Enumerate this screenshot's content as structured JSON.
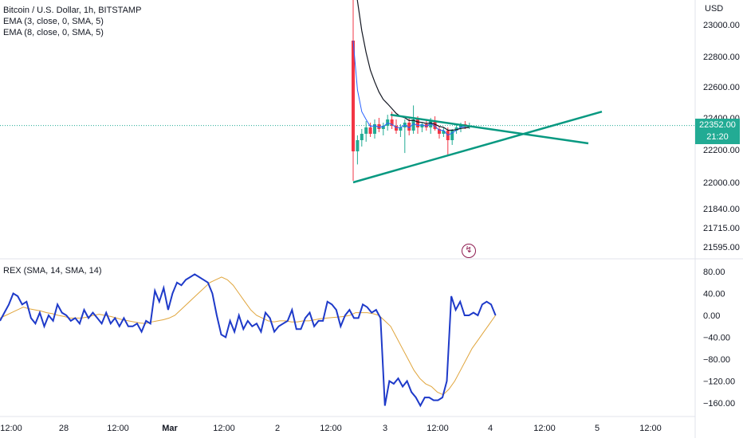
{
  "window": {
    "currency_label": "USD"
  },
  "legend": {
    "main_title": "Bitcoin / U.S. Dollar, 1h, BITSTAMP",
    "ema1": "EMA (3, close, 0, SMA, 5)",
    "ema2": "EMA (8, close, 0, SMA, 5)",
    "rex": "REX (SMA, 14, SMA, 14)"
  },
  "price_tag": {
    "price": "22352.00",
    "countdown": "21:20"
  },
  "colors": {
    "up": "#22ab94",
    "down": "#f23645",
    "ema_fast": "#2962ff",
    "ema_slow": "#131722",
    "trendline": "#089981",
    "rex_line": "#1e3ac9",
    "rex_signal": "#e0a53c",
    "price_line": "#22ab94"
  },
  "icons": {
    "flash": "lightning-icon"
  },
  "chart_data": [
    {
      "type": "candlestick",
      "title": "Bitcoin / U.S. Dollar, 1h, BITSTAMP",
      "ylabel": "USD",
      "y_ticks": [
        23000.0,
        22800.0,
        22600.0,
        22400.0,
        22200.0,
        22000.0,
        21840.0,
        21715.0,
        21595.0
      ],
      "y_tick_labels": [
        "23000.00",
        "22800.00",
        "22600.00",
        "22400.00",
        "22200.00",
        "22000.00",
        "21840.00",
        "21715.00",
        "21595.00"
      ],
      "last_price": 22352.0,
      "candles_visible": [
        {
          "o": 22900,
          "h": 23500,
          "l": 22010,
          "c": 22190
        },
        {
          "o": 22190,
          "h": 22290,
          "l": 22110,
          "c": 22260
        },
        {
          "o": 22260,
          "h": 22330,
          "l": 22220,
          "c": 22300
        },
        {
          "o": 22300,
          "h": 22380,
          "l": 22250,
          "c": 22340
        },
        {
          "o": 22340,
          "h": 22370,
          "l": 22280,
          "c": 22300
        },
        {
          "o": 22300,
          "h": 22390,
          "l": 22270,
          "c": 22360
        },
        {
          "o": 22360,
          "h": 22400,
          "l": 22310,
          "c": 22330
        },
        {
          "o": 22330,
          "h": 22370,
          "l": 22290,
          "c": 22350
        },
        {
          "o": 22350,
          "h": 22420,
          "l": 22320,
          "c": 22390
        },
        {
          "o": 22390,
          "h": 22440,
          "l": 22330,
          "c": 22350
        },
        {
          "o": 22350,
          "h": 22390,
          "l": 22300,
          "c": 22320
        },
        {
          "o": 22320,
          "h": 22360,
          "l": 22280,
          "c": 22340
        },
        {
          "o": 22340,
          "h": 22390,
          "l": 22180,
          "c": 22370
        },
        {
          "o": 22370,
          "h": 22400,
          "l": 22290,
          "c": 22320
        },
        {
          "o": 22320,
          "h": 22480,
          "l": 22300,
          "c": 22390
        },
        {
          "o": 22390,
          "h": 22410,
          "l": 22300,
          "c": 22340
        },
        {
          "o": 22340,
          "h": 22370,
          "l": 22310,
          "c": 22360
        },
        {
          "o": 22360,
          "h": 22390,
          "l": 22320,
          "c": 22340
        },
        {
          "o": 22340,
          "h": 22400,
          "l": 22300,
          "c": 22380
        },
        {
          "o": 22380,
          "h": 22410,
          "l": 22320,
          "c": 22330
        },
        {
          "o": 22330,
          "h": 22350,
          "l": 22270,
          "c": 22300
        },
        {
          "o": 22300,
          "h": 22340,
          "l": 22280,
          "c": 22320
        },
        {
          "o": 22320,
          "h": 22340,
          "l": 22170,
          "c": 22260
        },
        {
          "o": 22260,
          "h": 22330,
          "l": 22230,
          "c": 22320
        },
        {
          "o": 22320,
          "h": 22360,
          "l": 22300,
          "c": 22340
        },
        {
          "o": 22340,
          "h": 22370,
          "l": 22310,
          "c": 22360
        },
        {
          "o": 22360,
          "h": 22380,
          "l": 22330,
          "c": 22350
        },
        {
          "o": 22350,
          "h": 22370,
          "l": 22330,
          "c": 22352
        }
      ],
      "trendlines": [
        {
          "from": [
            0.0,
            22000
          ],
          "to": [
            1.0,
            22440
          ]
        },
        {
          "from": [
            0.15,
            22420
          ],
          "to": [
            1.0,
            22240
          ]
        }
      ]
    },
    {
      "type": "line",
      "title": "REX (SMA, 14, SMA, 14)",
      "y_ticks": [
        80.0,
        40.0,
        0.0,
        -40.0,
        -80.0,
        -120.0,
        -160.0
      ],
      "y_tick_labels": [
        "80.00",
        "40.00",
        "0.00",
        "−40.00",
        "−80.00",
        "−120.00",
        "−160.00"
      ],
      "ylim": [
        -175,
        100
      ],
      "series": [
        {
          "values": [
            -10,
            5,
            20,
            40,
            35,
            20,
            25,
            -5,
            -15,
            5,
            -20,
            0,
            -10,
            20,
            5,
            0,
            -10,
            -5,
            -15,
            10,
            -5,
            5,
            -5,
            -15,
            5,
            -15,
            -5,
            -20,
            -5,
            -20,
            -20,
            -15,
            -30,
            -10,
            -15,
            45,
            25,
            50,
            10,
            40,
            60,
            55,
            65,
            70,
            75,
            70,
            65,
            60,
            40,
            0,
            -35,
            -40,
            -10,
            -30,
            0,
            -25,
            -10,
            -20,
            -15,
            -30,
            5,
            -5,
            -30,
            -20,
            -15,
            -10,
            10,
            -25,
            -25,
            -5,
            5,
            -20,
            -10,
            -10,
            25,
            20,
            10,
            -20,
            0,
            10,
            -5,
            -5,
            20,
            15,
            5,
            10,
            -5,
            -165,
            -120,
            -125,
            -115,
            -130,
            -120,
            -140,
            -150,
            -165,
            -150,
            -150,
            -155,
            -155,
            -150,
            -120,
            35,
            10,
            25,
            0,
            0,
            5,
            0,
            20,
            25,
            20,
            0
          ],
          "visible_points": 111
        },
        {
          "values": [
            -5,
            0,
            5,
            10,
            15,
            12,
            10,
            8,
            5,
            3,
            0,
            -2,
            -5,
            -5,
            -5,
            -3,
            0,
            2,
            0,
            -2,
            -5,
            -8,
            -10,
            -12,
            -14,
            -15,
            -12,
            -10,
            -8,
            -5,
            0,
            10,
            20,
            30,
            40,
            50,
            60,
            65,
            70,
            65,
            55,
            40,
            25,
            10,
            0,
            -5,
            -10,
            -12,
            -10,
            -10,
            -12,
            -12,
            -10,
            -10,
            -8,
            -6,
            -5,
            -4,
            -3,
            -2,
            0,
            5,
            5,
            5,
            3,
            0,
            -10,
            -20,
            -40,
            -60,
            -80,
            -100,
            -115,
            -125,
            -130,
            -140,
            -145,
            -135,
            -120,
            -100,
            -80,
            -60,
            -45,
            -30,
            -15,
            0
          ],
          "visible_points": 86
        }
      ]
    }
  ],
  "x_axis": {
    "labels": [
      {
        "text": "12:00",
        "bold": false
      },
      {
        "text": "28",
        "bold": false
      },
      {
        "text": "12:00",
        "bold": false
      },
      {
        "text": "Mar",
        "bold": true
      },
      {
        "text": "12:00",
        "bold": false
      },
      {
        "text": "2",
        "bold": false
      },
      {
        "text": "12:00",
        "bold": false
      },
      {
        "text": "3",
        "bold": false
      },
      {
        "text": "12:00",
        "bold": false
      },
      {
        "text": "4",
        "bold": false
      },
      {
        "text": "12:00",
        "bold": false
      },
      {
        "text": "5",
        "bold": false
      },
      {
        "text": "12:00",
        "bold": false
      }
    ]
  }
}
